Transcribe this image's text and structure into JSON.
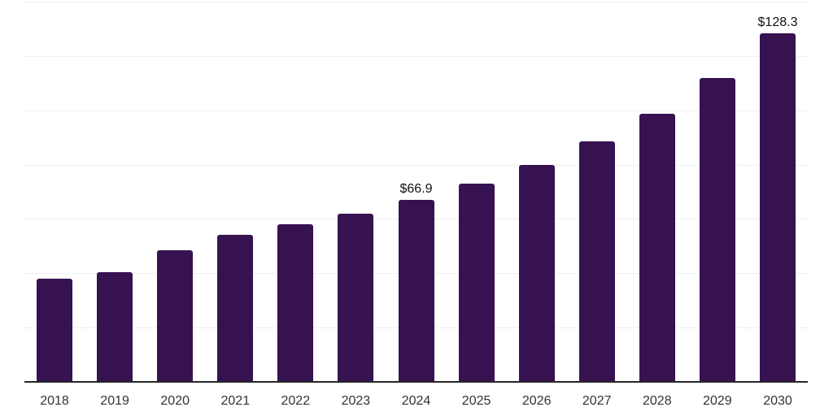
{
  "page": {
    "background_color": "#ffffff"
  },
  "chart_data": {
    "type": "bar",
    "title": "",
    "xlabel": "",
    "ylabel": "",
    "categories": [
      "2018",
      "2019",
      "2020",
      "2021",
      "2022",
      "2023",
      "2024",
      "2025",
      "2026",
      "2027",
      "2028",
      "2029",
      "2030"
    ],
    "values": [
      37.9,
      40.5,
      48.5,
      54.3,
      58.1,
      62.0,
      66.9,
      72.9,
      79.9,
      88.6,
      98.7,
      111.9,
      128.3
    ],
    "data_labels": [
      {
        "category": "2024",
        "text": "$66.9"
      },
      {
        "category": "2030",
        "text": "$128.3"
      }
    ],
    "ylim": [
      0,
      140
    ],
    "grid_step": 20,
    "grid": true,
    "y_tick_labels_shown": false,
    "legend": false,
    "colors": {
      "bar": "#361250",
      "axis_line": "#262626",
      "gridline": "#efefef",
      "tick_label": "#333333",
      "data_label": "#111111"
    }
  }
}
